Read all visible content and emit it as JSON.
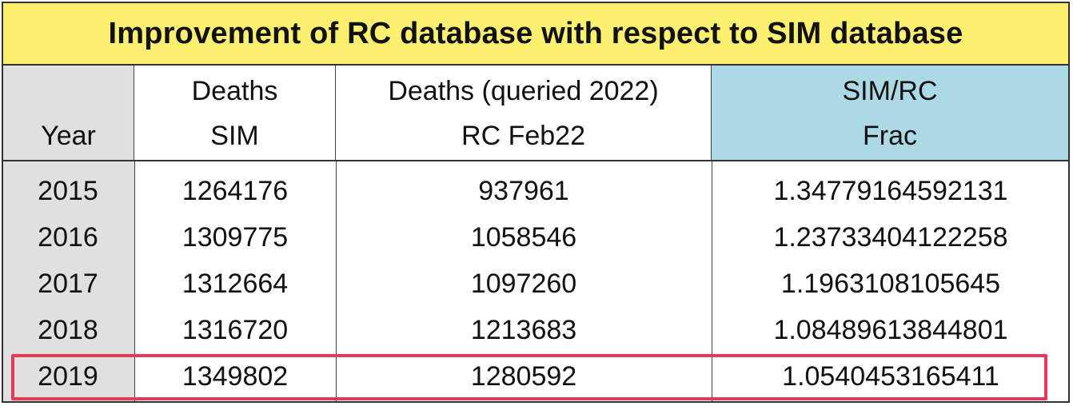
{
  "title": "Improvement of RC database with respect to SIM database",
  "headers": {
    "year": [
      "",
      "Year"
    ],
    "sim": [
      "Deaths",
      "SIM"
    ],
    "rc": [
      "Deaths (queried 2022)",
      "RC Feb22"
    ],
    "frac": [
      "SIM/RC",
      "Frac"
    ]
  },
  "rows": [
    {
      "year": "2015",
      "sim": "1264176",
      "rc": "937961",
      "frac": "1.34779164592131"
    },
    {
      "year": "2016",
      "sim": "1309775",
      "rc": "1058546",
      "frac": "1.23733404122258"
    },
    {
      "year": "2017",
      "sim": "1312664",
      "rc": "1097260",
      "frac": "1.1963108105645"
    },
    {
      "year": "2018",
      "sim": "1316720",
      "rc": "1213683",
      "frac": "1.08489613844801"
    },
    {
      "year": "2019",
      "sim": "1349802",
      "rc": "1280592",
      "frac": "1.0540453165411"
    }
  ],
  "highlighted_row": "2019",
  "colors": {
    "title_bg": "#fbf070",
    "year_col_bg": "#e0e0e0",
    "frac_header_bg": "#add8e6",
    "highlight_border": "#e8385a"
  }
}
